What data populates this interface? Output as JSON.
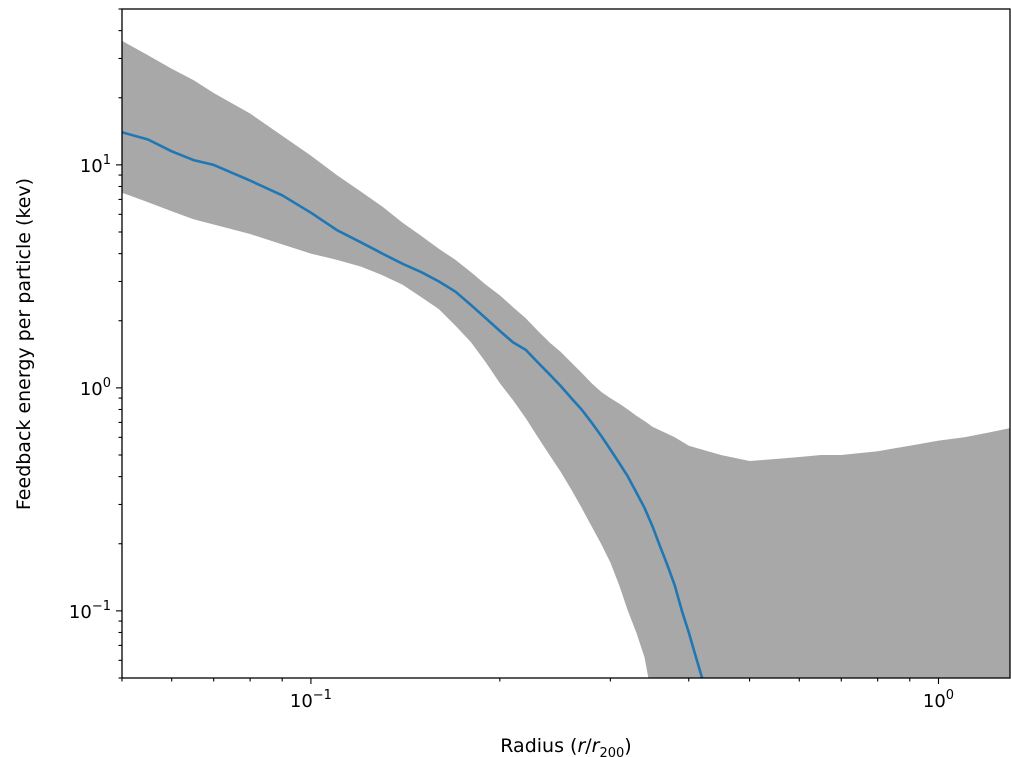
{
  "chart_data": {
    "type": "area",
    "title": "",
    "xlabel": "Radius (r/r200)",
    "xlabel_parts": {
      "prefix": "Radius (",
      "r": "r",
      "slash": "/",
      "r2": "r",
      "sub": "200",
      "suffix": ")"
    },
    "ylabel": "Feedback energy per particle (kev)",
    "xscale": "log",
    "yscale": "log",
    "xlim": [
      0.05,
      1.3
    ],
    "ylim": [
      0.05,
      50
    ],
    "grid": false,
    "legend": "none",
    "x_ticks": [
      {
        "value": 0.1,
        "base": "10",
        "exp": "−1"
      },
      {
        "value": 1,
        "base": "10",
        "exp": "0"
      }
    ],
    "y_ticks": [
      {
        "value": 0.1,
        "base": "10",
        "exp": "−1"
      },
      {
        "value": 1,
        "base": "10",
        "exp": "0"
      },
      {
        "value": 10,
        "base": "10",
        "exp": "1"
      }
    ],
    "colors": {
      "line": "#1f77b4",
      "band": "#a8a8a8",
      "axes": "#000000"
    },
    "series": [
      {
        "kind": "line",
        "x": [
          0.05,
          0.055,
          0.06,
          0.065,
          0.07,
          0.08,
          0.09,
          0.1,
          0.11,
          0.12,
          0.13,
          0.14,
          0.15,
          0.16,
          0.17,
          0.18,
          0.19,
          0.2,
          0.21,
          0.22,
          0.23,
          0.24,
          0.25,
          0.26,
          0.27,
          0.28,
          0.29,
          0.3,
          0.31,
          0.32,
          0.33,
          0.34,
          0.35,
          0.36,
          0.37,
          0.38,
          0.39,
          0.4,
          0.41,
          0.42
        ],
        "y": [
          14.0,
          13.0,
          11.5,
          10.5,
          10.0,
          8.5,
          7.3,
          6.1,
          5.1,
          4.5,
          4.0,
          3.6,
          3.3,
          3.0,
          2.7,
          2.35,
          2.05,
          1.8,
          1.6,
          1.48,
          1.3,
          1.15,
          1.02,
          0.9,
          0.8,
          0.7,
          0.61,
          0.53,
          0.46,
          0.4,
          0.34,
          0.29,
          0.24,
          0.195,
          0.16,
          0.13,
          0.1,
          0.08,
          0.063,
          0.05
        ]
      },
      {
        "kind": "band",
        "x": [
          0.05,
          0.055,
          0.06,
          0.065,
          0.07,
          0.08,
          0.09,
          0.1,
          0.11,
          0.12,
          0.13,
          0.14,
          0.15,
          0.16,
          0.17,
          0.18,
          0.19,
          0.2,
          0.21,
          0.22,
          0.23,
          0.24,
          0.25,
          0.26,
          0.27,
          0.28,
          0.29,
          0.3,
          0.31,
          0.32,
          0.33,
          0.34,
          0.345,
          0.35,
          0.38,
          0.4,
          0.45,
          0.5,
          0.55,
          0.6,
          0.65,
          0.7,
          0.8,
          0.9,
          1.0,
          1.1,
          1.2,
          1.3
        ],
        "lower": [
          7.5,
          6.8,
          6.2,
          5.7,
          5.4,
          4.9,
          4.4,
          4.0,
          3.75,
          3.5,
          3.2,
          2.9,
          2.55,
          2.25,
          1.9,
          1.6,
          1.3,
          1.05,
          0.88,
          0.73,
          0.6,
          0.5,
          0.42,
          0.35,
          0.29,
          0.24,
          0.2,
          0.165,
          0.13,
          0.1,
          0.08,
          0.062,
          0.05,
          0.05,
          0.05,
          0.05,
          0.05,
          0.05,
          0.05,
          0.05,
          0.05,
          0.05,
          0.05,
          0.05,
          0.05,
          0.05,
          0.05,
          0.05
        ],
        "upper": [
          36.0,
          31.0,
          27.0,
          24.0,
          21.0,
          17.0,
          13.5,
          11.0,
          9.0,
          7.6,
          6.5,
          5.5,
          4.8,
          4.2,
          3.75,
          3.3,
          2.9,
          2.6,
          2.3,
          2.05,
          1.8,
          1.6,
          1.45,
          1.3,
          1.17,
          1.05,
          0.96,
          0.9,
          0.85,
          0.8,
          0.75,
          0.71,
          0.69,
          0.67,
          0.6,
          0.55,
          0.5,
          0.47,
          0.48,
          0.49,
          0.5,
          0.5,
          0.52,
          0.55,
          0.58,
          0.6,
          0.63,
          0.66
        ]
      }
    ]
  }
}
